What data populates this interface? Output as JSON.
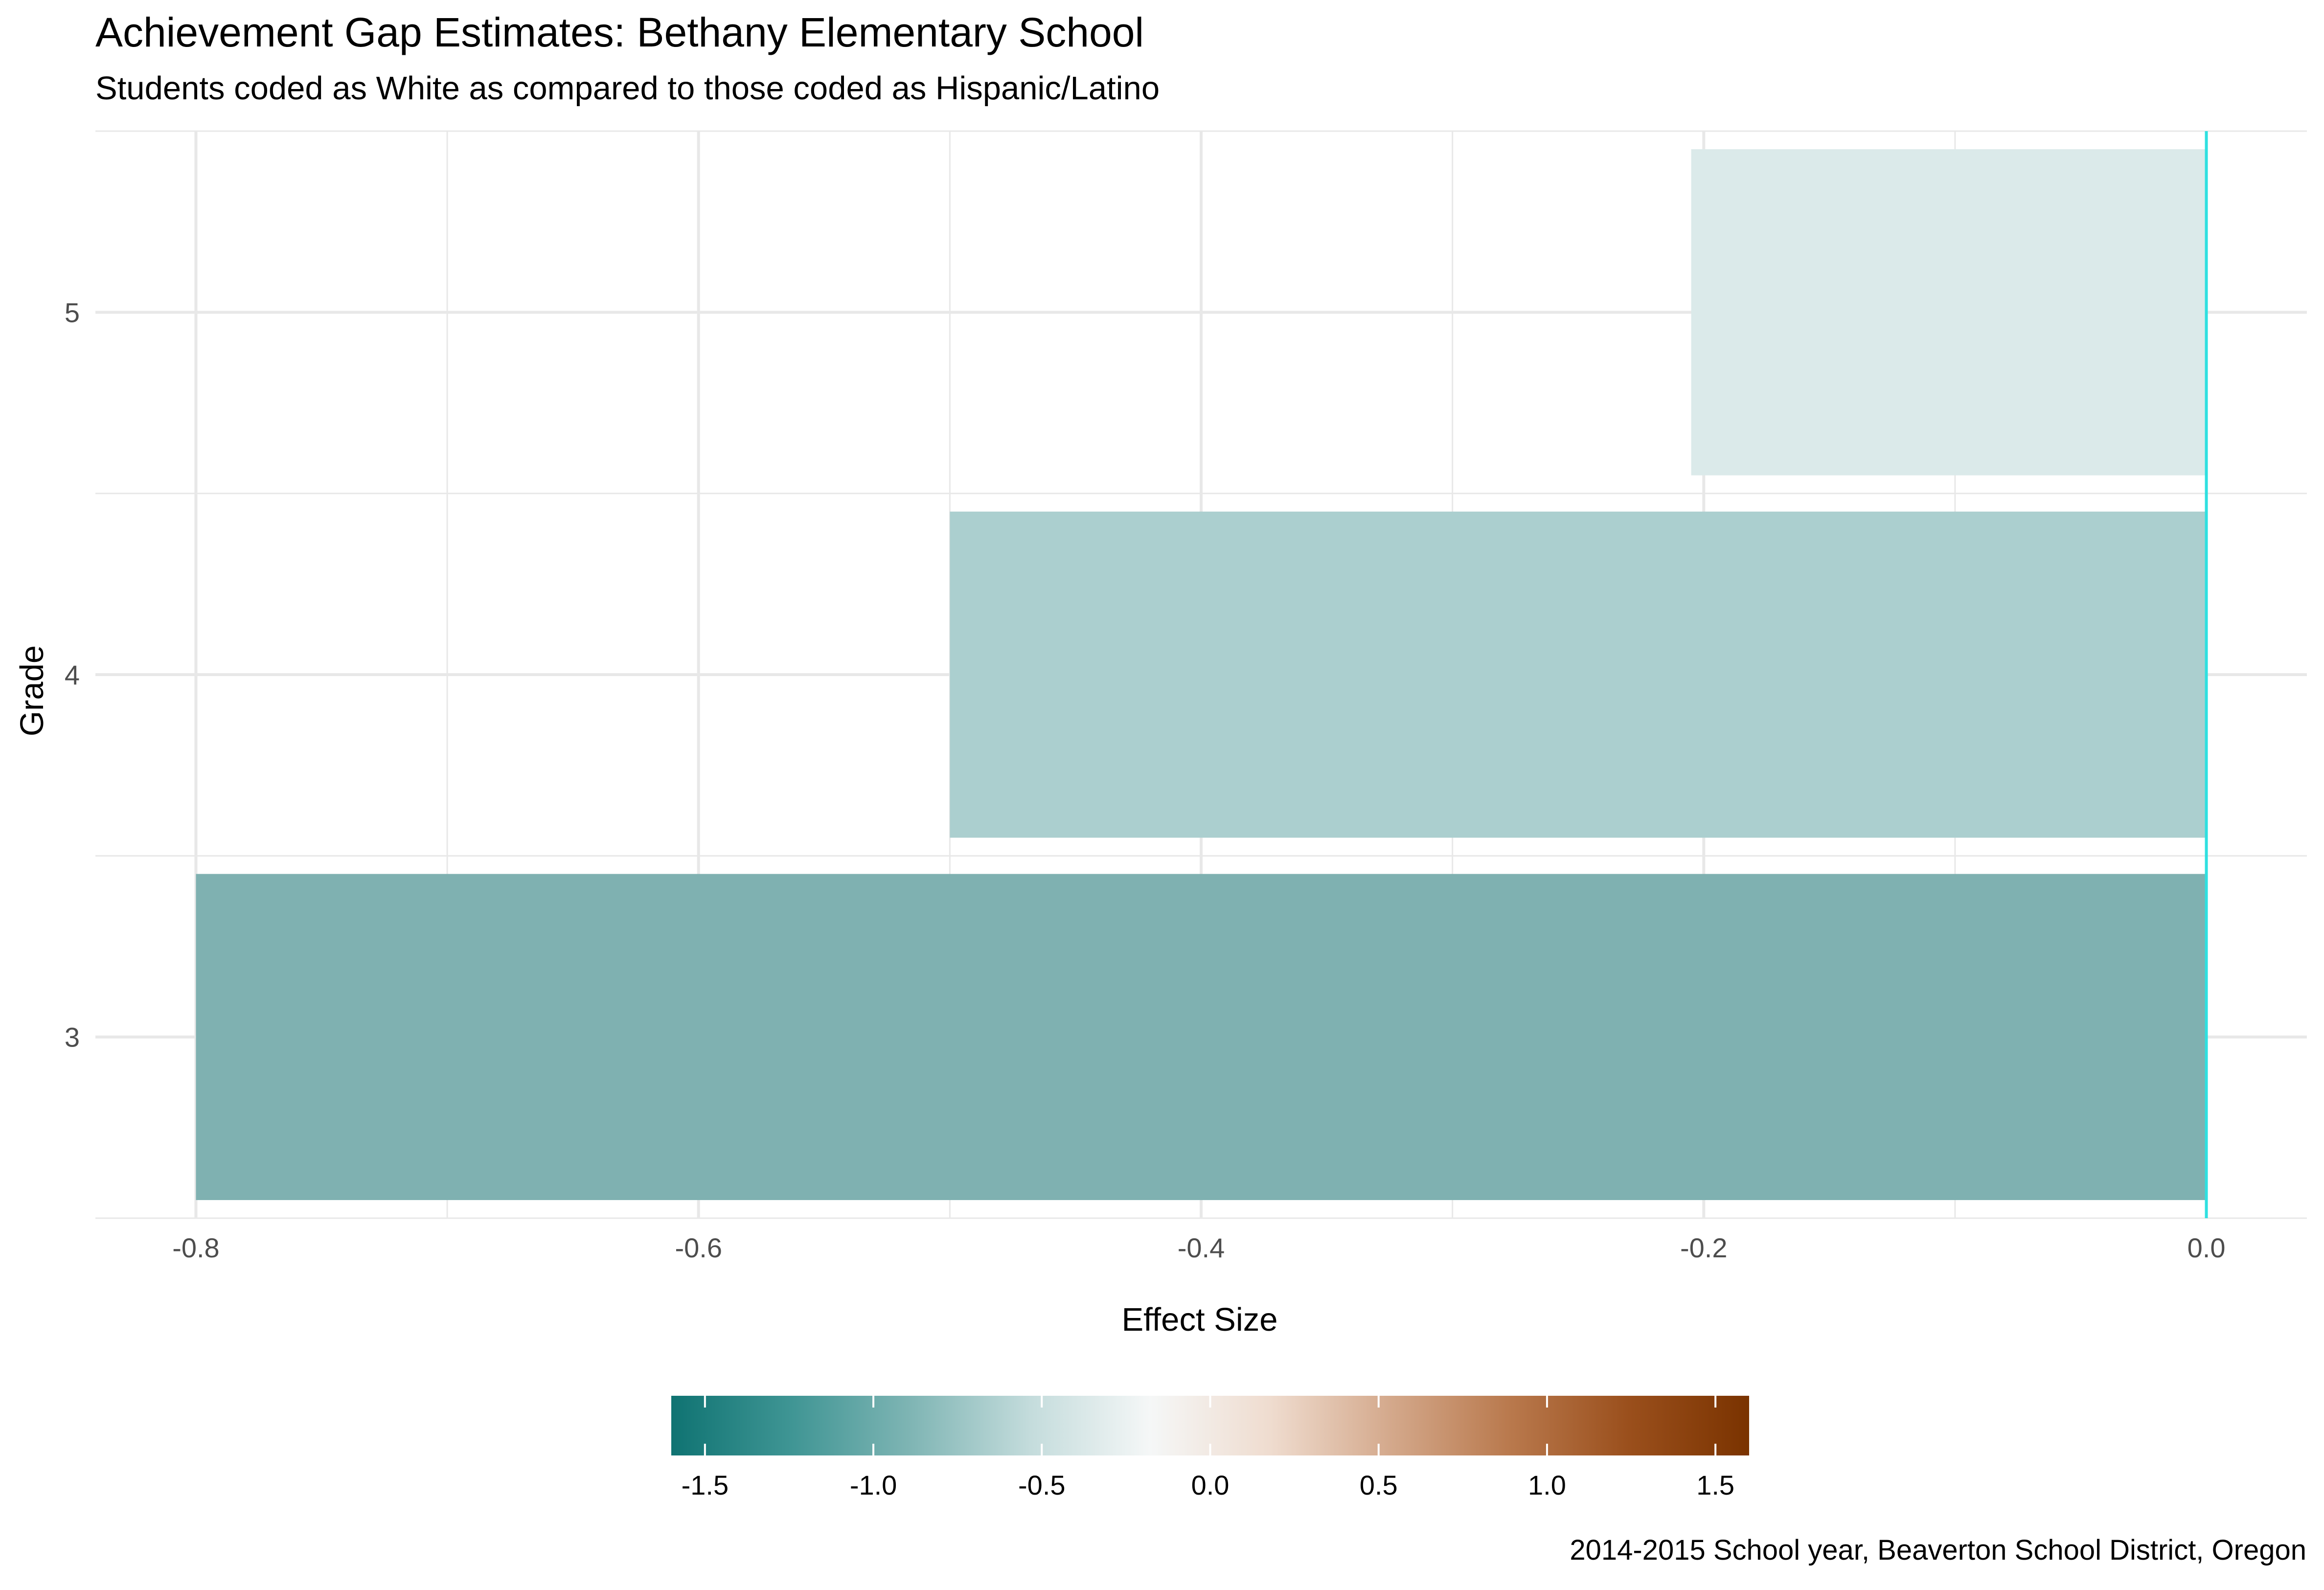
{
  "chart_data": {
    "type": "bar",
    "orientation": "horizontal",
    "title": "Achievement Gap Estimates: Bethany Elementary School",
    "subtitle": "Students coded as White as compared to those coded as Hispanic/Latino",
    "xlabel": "Effect Size",
    "ylabel": "Grade",
    "caption": "2014-2015 School year, Beaverton School District, Oregon",
    "categories": [
      "3",
      "4",
      "5"
    ],
    "values": [
      -0.8,
      -0.5,
      -0.205
    ],
    "xlim": [
      -0.84,
      0.04
    ],
    "x_ticks": [
      "-0.8",
      "-0.6",
      "-0.4",
      "-0.2",
      "0.0"
    ],
    "x_tick_values": [
      -0.8,
      -0.6,
      -0.4,
      -0.2,
      0.0
    ],
    "reference_line": 0.0,
    "grid": true,
    "colors": {
      "reference_line": "#2fe0e0",
      "grid": "#e8e8e8",
      "bar_fill": [
        "#7fb1b1",
        "#abcfcf",
        "#dbeaea"
      ]
    },
    "legend": {
      "type": "colorbar",
      "position": "bottom",
      "range": [
        -1.6,
        1.6
      ],
      "ticks": [
        "-1.5",
        "-1.0",
        "-0.5",
        "0.0",
        "0.5",
        "1.0",
        "1.5"
      ],
      "tick_values": [
        -1.5,
        -1.0,
        -0.5,
        0.0,
        0.5,
        1.0,
        1.5
      ],
      "gradient": [
        "#0f7372",
        "#3f9594",
        "#7fb5b4",
        "#c4dcdc",
        "#f5f7f7",
        "#efdccf",
        "#d4a98c",
        "#b9794d",
        "#9a4f1c",
        "#7a3300"
      ]
    }
  }
}
